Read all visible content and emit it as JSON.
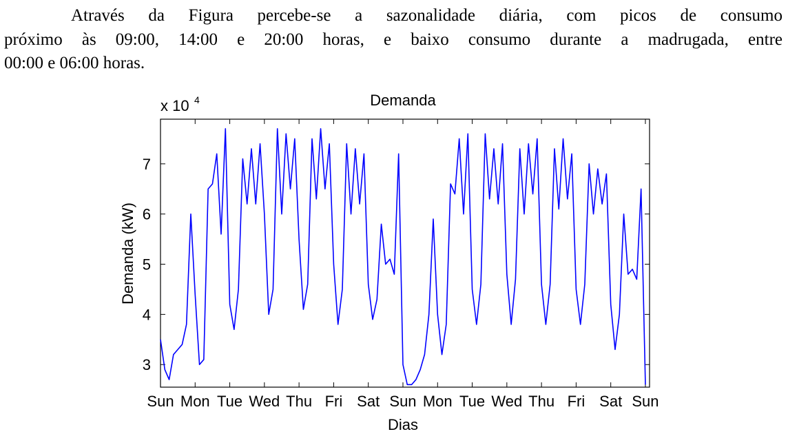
{
  "paragraph": {
    "lines": [
      "Através da Figura   percebe-se a sazonalidade diária, com picos de consumo",
      "próximo às 09:00, 14:00 e 20:00 horas, e baixo consumo durante a madrugada, entre",
      "00:00 e 06:00 horas."
    ]
  },
  "chart_data": {
    "type": "line",
    "title": "Demanda",
    "y_label": "Demanda (kW)",
    "x_label": "Dias",
    "y_multiplier": {
      "base": "x 10",
      "exponent": "4"
    },
    "xlim": [
      0,
      14.12
    ],
    "ylim": [
      2.55,
      7.89
    ],
    "xticks": [
      {
        "value": 0,
        "label": "Sun"
      },
      {
        "value": 1,
        "label": "Mon"
      },
      {
        "value": 2,
        "label": "Tue"
      },
      {
        "value": 3,
        "label": "Wed"
      },
      {
        "value": 4,
        "label": "Thu"
      },
      {
        "value": 5,
        "label": "Fri"
      },
      {
        "value": 6,
        "label": "Sat"
      },
      {
        "value": 7,
        "label": "Sun"
      },
      {
        "value": 8,
        "label": "Mon"
      },
      {
        "value": 9,
        "label": "Tue"
      },
      {
        "value": 10,
        "label": "Wed"
      },
      {
        "value": 11,
        "label": "Thu"
      },
      {
        "value": 12,
        "label": "Fri"
      },
      {
        "value": 13,
        "label": "Sat"
      },
      {
        "value": 14,
        "label": "Sun"
      }
    ],
    "yticks": [
      3,
      4,
      5,
      6,
      7
    ],
    "x": [
      0,
      0.125,
      0.25,
      0.375,
      0.5,
      0.625,
      0.75,
      0.875,
      1,
      1.125,
      1.25,
      1.375,
      1.5,
      1.625,
      1.75,
      1.875,
      2,
      2.125,
      2.25,
      2.375,
      2.5,
      2.625,
      2.75,
      2.875,
      3,
      3.125,
      3.25,
      3.375,
      3.5,
      3.625,
      3.75,
      3.875,
      4,
      4.125,
      4.25,
      4.375,
      4.5,
      4.625,
      4.75,
      4.875,
      5,
      5.125,
      5.25,
      5.375,
      5.5,
      5.625,
      5.75,
      5.875,
      6,
      6.125,
      6.25,
      6.375,
      6.5,
      6.625,
      6.75,
      6.875,
      7,
      7.125,
      7.25,
      7.375,
      7.5,
      7.625,
      7.75,
      7.875,
      8,
      8.125,
      8.25,
      8.375,
      8.5,
      8.625,
      8.75,
      8.875,
      9,
      9.125,
      9.25,
      9.375,
      9.5,
      9.625,
      9.75,
      9.875,
      10,
      10.125,
      10.25,
      10.375,
      10.5,
      10.625,
      10.75,
      10.875,
      11,
      11.125,
      11.25,
      11.375,
      11.5,
      11.625,
      11.75,
      11.875,
      12,
      12.125,
      12.25,
      12.375,
      12.5,
      12.625,
      12.75,
      12.875,
      13,
      13.125,
      13.25,
      13.375,
      13.5,
      13.625,
      13.75,
      13.875,
      14
    ],
    "series": [
      {
        "color": "#0000ff",
        "values": [
          3.5,
          2.9,
          2.7,
          3.2,
          3.3,
          3.4,
          3.8,
          6.0,
          4.4,
          3.0,
          3.1,
          6.5,
          6.6,
          7.2,
          5.6,
          7.7,
          4.2,
          3.7,
          4.5,
          7.1,
          6.2,
          7.3,
          6.2,
          7.4,
          6.0,
          4.0,
          4.5,
          7.7,
          6.0,
          7.6,
          6.5,
          7.5,
          5.5,
          4.1,
          4.6,
          7.5,
          6.3,
          7.7,
          6.5,
          7.4,
          5.0,
          3.8,
          4.5,
          7.4,
          6.0,
          7.3,
          6.2,
          7.2,
          4.6,
          3.9,
          4.3,
          5.8,
          5.0,
          5.1,
          4.8,
          7.2,
          3.0,
          2.6,
          2.6,
          2.7,
          2.9,
          3.2,
          4.0,
          5.9,
          4.0,
          3.2,
          3.8,
          6.6,
          6.4,
          7.5,
          6.0,
          7.6,
          4.5,
          3.8,
          4.6,
          7.6,
          6.3,
          7.3,
          6.2,
          7.4,
          4.8,
          3.8,
          4.7,
          7.3,
          6.0,
          7.4,
          6.4,
          7.5,
          4.6,
          3.8,
          4.6,
          7.3,
          6.1,
          7.5,
          6.3,
          7.2,
          4.5,
          3.8,
          4.6,
          7.0,
          6.0,
          6.9,
          6.2,
          6.8,
          4.2,
          3.3,
          4.0,
          6.0,
          4.8,
          4.9,
          4.7,
          6.5,
          2.6
        ]
      }
    ]
  }
}
